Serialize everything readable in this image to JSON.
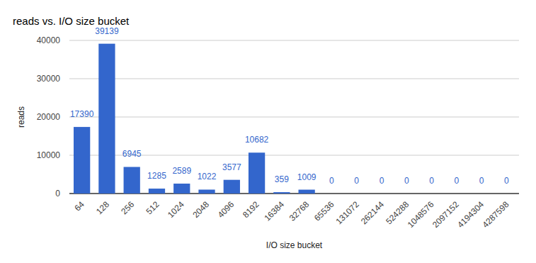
{
  "chart_data": {
    "type": "bar",
    "title": "reads vs. I/O size bucket",
    "x_label": "I/O size bucket",
    "y_label": "reads",
    "categories": [
      "64",
      "128",
      "256",
      "512",
      "1024",
      "2048",
      "4096",
      "8192",
      "16384",
      "32768",
      "65536",
      "131072",
      "262144",
      "524288",
      "1048576",
      "2097152",
      "4194304",
      "4287598"
    ],
    "values": [
      17390,
      39139,
      6945,
      1285,
      2589,
      1022,
      3577,
      10682,
      359,
      1009,
      0,
      0,
      0,
      0,
      0,
      0,
      0,
      0
    ],
    "color": "#3366cc",
    "ylim": [
      0,
      40000
    ],
    "yticks": [
      0,
      10000,
      20000,
      30000,
      40000
    ],
    "grid": true,
    "data_labels": true
  }
}
